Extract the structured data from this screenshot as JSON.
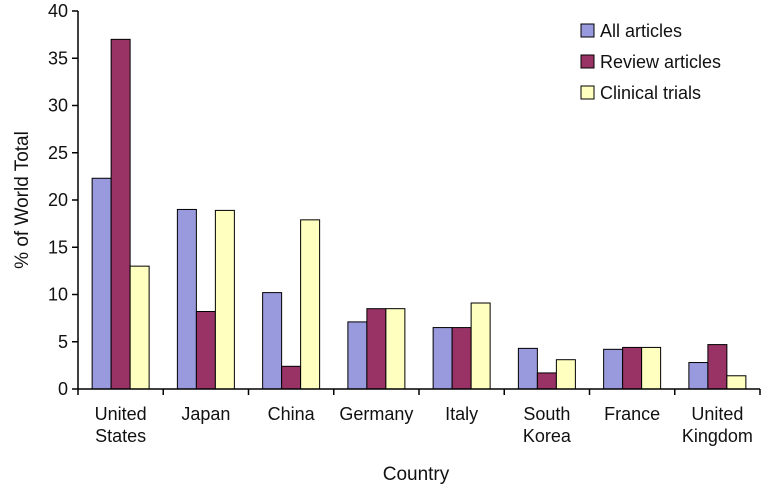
{
  "chart_data": {
    "type": "bar",
    "xlabel": "Country",
    "ylabel": "% of World Total",
    "ylim": [
      0,
      40
    ],
    "yticks": [
      0,
      5,
      10,
      15,
      20,
      25,
      30,
      35,
      40
    ],
    "grid": false,
    "legend_position": "top-right",
    "categories": [
      [
        "United",
        "States"
      ],
      [
        "Japan"
      ],
      [
        "China"
      ],
      [
        "Germany"
      ],
      [
        "Italy"
      ],
      [
        "South",
        "Korea"
      ],
      [
        "France"
      ],
      [
        "United",
        "Kingdom"
      ]
    ],
    "series": [
      {
        "name": "All articles",
        "color": "#9999dd",
        "values": [
          22.3,
          19.0,
          10.2,
          7.1,
          6.5,
          4.3,
          4.2,
          2.8
        ]
      },
      {
        "name": "Review articles",
        "color": "#993366",
        "values": [
          37.0,
          8.2,
          2.4,
          8.5,
          6.5,
          1.7,
          4.4,
          4.7
        ]
      },
      {
        "name": "Clinical trials",
        "color": "#ffffc0",
        "values": [
          13.0,
          18.9,
          17.9,
          8.5,
          9.1,
          3.1,
          4.4,
          1.4
        ]
      }
    ]
  }
}
